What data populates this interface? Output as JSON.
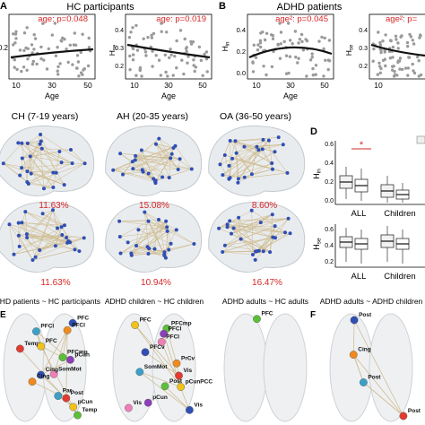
{
  "panels": {
    "A": {
      "letter": "A",
      "title": "HC participants",
      "left": {
        "stat": "age: p=0.048",
        "ticks_y": [
          "0.2"
        ],
        "ticks_x": [
          "10",
          "30",
          "50"
        ],
        "xlabel": "Age"
      },
      "right": {
        "stat": "age: p=0.019",
        "ylabel": "Hse",
        "ticks_y": [
          "0.5",
          "0.4",
          "0.3",
          "0.2"
        ],
        "ticks_x": [
          "10",
          "30",
          "50"
        ],
        "xlabel": "Age"
      }
    },
    "B": {
      "letter": "B",
      "title": "ADHD patients",
      "left": {
        "stat": "age²: p=0.045",
        "ylabel": "Hin",
        "ticks_y": [
          "0.4",
          "0.2",
          "0.0"
        ],
        "ticks_x": [
          "10",
          "30",
          "50"
        ],
        "xlabel": "Age"
      },
      "right": {
        "stat": "age²: p=",
        "ylabel": "Hse",
        "ticks_y": [
          "0.5",
          "0.4",
          "0.3",
          "0.2"
        ],
        "ticks_x": [
          "10"
        ]
      }
    },
    "C": {
      "groups": [
        {
          "title": "CH (7-19 years)",
          "pct_top": "11.63%",
          "pct_bottom": "11.63%"
        },
        {
          "title": "AH (20-35 years)",
          "pct_top": "15.08%",
          "pct_bottom": "10.94%"
        },
        {
          "title": "OA (36-50 years)",
          "pct_top": "8.60%",
          "pct_bottom": "16.47%"
        }
      ]
    },
    "D": {
      "letter": "D",
      "top": {
        "ylabel": "Hin",
        "ticks_y": [
          "0.6",
          "0.4",
          "0.2",
          "0.0"
        ],
        "categories": [
          "ALL",
          "Children"
        ],
        "sig": "*"
      },
      "bottom": {
        "ylabel": "Hse",
        "ticks_y": [
          "0.6",
          "0.4",
          "0.2"
        ],
        "categories": [
          "ALL",
          "Children"
        ]
      }
    },
    "bottom": {
      "titles": [
        "ADHD patients ~ HC participants",
        "ADHD children ~ HC children",
        "ADHD adults ~ HC adults",
        "ADHD adults ~ ADHD children"
      ],
      "letter_E": "E",
      "letter_F": "F",
      "brain1_labels": [
        "PFC",
        "PFCl",
        "PFCl",
        "Temp",
        "PFC",
        "PFCmp",
        "pCun",
        "SomMot",
        "Cing",
        "Cing",
        "Par",
        "Post",
        "pCun",
        "Temp"
      ],
      "brain2_labels": [
        "PFC",
        "PFCmp",
        "PFCl",
        "PFCl",
        "PFCv",
        "PrCv",
        "SomMot",
        "Vis",
        "pCunPCC",
        "Post",
        "pCun",
        "Vis",
        "Vis"
      ],
      "brain3_labels": [
        "PFC"
      ],
      "brain4_labels": [
        "Post",
        "Cing",
        "Post",
        "Post"
      ]
    }
  },
  "colors": {
    "stat_red": "#d62828",
    "node_blue": "#2f4fb5",
    "edge_tan": "#cdb98a",
    "fit_line": "#111111",
    "scatter_grey": "#9a9a9a"
  },
  "chart_data": [
    {
      "type": "scatter",
      "title": "HC participants",
      "xlabel": "Age",
      "annotation": "age: p=0.048",
      "fit": "increasing"
    },
    {
      "type": "scatter",
      "ylabel": "Hse",
      "xlabel": "Age",
      "annotation": "age: p=0.019",
      "fit": "decreasing"
    },
    {
      "type": "scatter",
      "title": "ADHD patients",
      "ylabel": "Hin",
      "xlabel": "Age",
      "annotation": "age²: p=0.045",
      "fit": "inverted-u"
    },
    {
      "type": "scatter",
      "ylabel": "Hse",
      "annotation": "age²: p=",
      "fit": "decreasing"
    },
    {
      "type": "box",
      "ylabel": "Hin",
      "categories": [
        "ALL",
        "Children"
      ]
    },
    {
      "type": "box",
      "ylabel": "Hse",
      "categories": [
        "ALL",
        "Children"
      ]
    }
  ]
}
